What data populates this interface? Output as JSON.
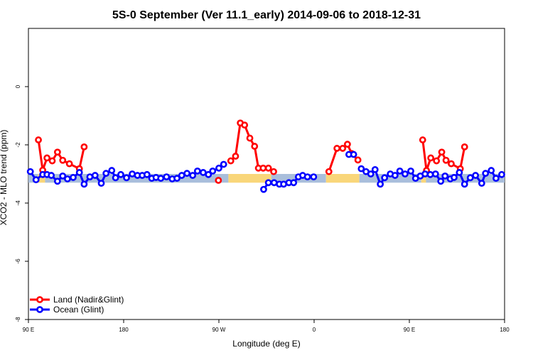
{
  "chart_data": {
    "type": "line",
    "title": "5S-0 September (Ver 11.1_early)   2014-09-06 to 2018-12-31",
    "xlabel": "Longitude (deg E)",
    "ylabel": "XCO2 - MLO trend (ppm)",
    "xlim": [
      0,
      100
    ],
    "ylim": [
      -8,
      2
    ],
    "x_ticks": [
      {
        "value": 0,
        "label": "90 E"
      },
      {
        "value": 20,
        "label": "180"
      },
      {
        "value": 40,
        "label": "90 W"
      },
      {
        "value": 60,
        "label": "0"
      },
      {
        "value": 80,
        "label": "90 E"
      },
      {
        "value": 100,
        "label": "180"
      }
    ],
    "y_ticks": [
      0,
      -2,
      -4,
      -6,
      -8
    ],
    "grid": false,
    "legend_position": "bottom-left",
    "background_band": {
      "y_min": -3.3,
      "y_max": -3.0,
      "segments": [
        {
          "x_start": 0,
          "x_end": 2,
          "color": "#a9bedb"
        },
        {
          "x_start": 2,
          "x_end": 3.5,
          "color": "#f9d67a"
        },
        {
          "x_start": 3.5,
          "x_end": 42,
          "color": "#a9bedb"
        },
        {
          "x_start": 42,
          "x_end": 51,
          "color": "#f9d67a"
        },
        {
          "x_start": 51,
          "x_end": 62.5,
          "color": "#a9bedb"
        },
        {
          "x_start": 62.5,
          "x_end": 69.5,
          "color": "#f9d67a"
        },
        {
          "x_start": 69.5,
          "x_end": 82.5,
          "color": "#a9bedb"
        },
        {
          "x_start": 82.5,
          "x_end": 83.5,
          "color": "#f9d67a"
        },
        {
          "x_start": 83.5,
          "x_end": 100,
          "color": "#a9bedb"
        }
      ]
    },
    "series": [
      {
        "name": "Land (Nadir&Glint)",
        "color": "#ff0000",
        "segments": [
          [
            [
              2.1,
              -1.83
            ],
            [
              3.0,
              -2.87
            ],
            [
              3.9,
              -2.45
            ],
            [
              5.0,
              -2.55
            ],
            [
              6.1,
              -2.25
            ],
            [
              7.2,
              -2.53
            ],
            [
              8.6,
              -2.65
            ],
            [
              10.7,
              -2.82
            ],
            [
              11.7,
              -2.07
            ]
          ],
          [
            [
              39.9,
              -3.22
            ]
          ],
          [
            [
              42.5,
              -2.55
            ],
            [
              43.5,
              -2.39
            ],
            [
              44.5,
              -1.25
            ],
            [
              45.4,
              -1.32
            ],
            [
              46.5,
              -1.77
            ],
            [
              47.5,
              -2.05
            ],
            [
              48.3,
              -2.8
            ],
            [
              49.3,
              -2.8
            ],
            [
              50.4,
              -2.8
            ],
            [
              51.5,
              -2.92
            ]
          ],
          [
            [
              63.1,
              -2.92
            ],
            [
              64.8,
              -2.12
            ],
            [
              66.0,
              -2.12
            ],
            [
              67.0,
              -1.98
            ],
            [
              67.9,
              -2.3
            ],
            [
              69.2,
              -2.52
            ]
          ],
          [
            [
              82.8,
              -1.83
            ],
            [
              83.6,
              -2.88
            ],
            [
              84.5,
              -2.45
            ],
            [
              85.7,
              -2.55
            ],
            [
              86.8,
              -2.25
            ],
            [
              87.7,
              -2.53
            ],
            [
              88.8,
              -2.65
            ],
            [
              90.7,
              -2.82
            ],
            [
              91.6,
              -2.07
            ]
          ]
        ]
      },
      {
        "name": "Ocean (Glint)",
        "color": "#0000ff",
        "segments": [
          [
            [
              0.4,
              -2.92
            ],
            [
              1.6,
              -3.2
            ],
            [
              3.0,
              -3.02
            ],
            [
              3.9,
              -3.02
            ],
            [
              4.8,
              -3.05
            ],
            [
              6.1,
              -3.25
            ],
            [
              7.2,
              -3.07
            ],
            [
              8.2,
              -3.17
            ],
            [
              9.4,
              -3.12
            ],
            [
              10.7,
              -2.95
            ],
            [
              11.7,
              -3.35
            ],
            [
              12.9,
              -3.1
            ],
            [
              14.0,
              -3.05
            ],
            [
              15.3,
              -3.32
            ],
            [
              16.3,
              -2.98
            ],
            [
              17.5,
              -2.88
            ],
            [
              18.3,
              -3.13
            ],
            [
              19.4,
              -3.02
            ],
            [
              20.6,
              -3.13
            ],
            [
              21.8,
              -3.0
            ],
            [
              22.9,
              -3.05
            ],
            [
              23.9,
              -3.05
            ],
            [
              24.9,
              -3.02
            ],
            [
              25.9,
              -3.15
            ],
            [
              26.8,
              -3.12
            ],
            [
              27.8,
              -3.15
            ],
            [
              29.0,
              -3.1
            ],
            [
              30.2,
              -3.17
            ],
            [
              31.2,
              -3.15
            ],
            [
              32.2,
              -3.05
            ],
            [
              33.3,
              -2.98
            ],
            [
              34.5,
              -3.05
            ],
            [
              35.5,
              -2.9
            ],
            [
              36.7,
              -2.95
            ],
            [
              37.8,
              -3.02
            ],
            [
              38.7,
              -2.9
            ],
            [
              40.0,
              -2.8
            ],
            [
              41.0,
              -2.67
            ]
          ],
          [
            [
              49.4,
              -3.53
            ],
            [
              50.4,
              -3.3
            ],
            [
              51.6,
              -3.3
            ],
            [
              52.7,
              -3.35
            ],
            [
              53.6,
              -3.35
            ],
            [
              54.7,
              -3.3
            ],
            [
              55.7,
              -3.3
            ],
            [
              56.7,
              -3.1
            ],
            [
              57.6,
              -3.05
            ],
            [
              58.6,
              -3.1
            ],
            [
              59.9,
              -3.1
            ]
          ],
          [
            [
              67.3,
              -2.33
            ],
            [
              68.3,
              -2.33
            ]
          ],
          [
            [
              69.9,
              -2.82
            ],
            [
              70.9,
              -2.92
            ],
            [
              71.9,
              -3.0
            ],
            [
              72.8,
              -2.85
            ],
            [
              73.9,
              -3.35
            ],
            [
              74.8,
              -3.13
            ],
            [
              76.0,
              -3.0
            ],
            [
              77.0,
              -3.05
            ],
            [
              78.0,
              -2.9
            ],
            [
              79.1,
              -3.0
            ],
            [
              80.3,
              -2.9
            ],
            [
              81.3,
              -3.15
            ],
            [
              82.3,
              -3.07
            ],
            [
              83.3,
              -3.0
            ],
            [
              84.4,
              -3.02
            ],
            [
              85.5,
              -3.0
            ],
            [
              86.6,
              -3.25
            ],
            [
              87.5,
              -3.07
            ],
            [
              88.6,
              -3.17
            ],
            [
              89.4,
              -3.12
            ],
            [
              90.5,
              -2.95
            ],
            [
              91.6,
              -3.35
            ],
            [
              92.8,
              -3.13
            ],
            [
              93.9,
              -3.05
            ],
            [
              95.2,
              -3.32
            ],
            [
              96.0,
              -2.98
            ],
            [
              97.2,
              -2.88
            ],
            [
              98.2,
              -3.15
            ],
            [
              99.4,
              -3.02
            ]
          ]
        ]
      }
    ]
  }
}
